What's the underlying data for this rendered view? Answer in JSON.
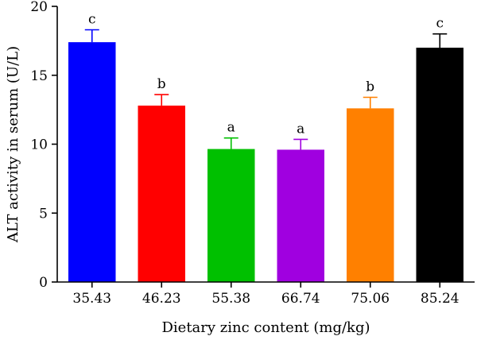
{
  "chart_data": {
    "type": "bar",
    "title": "",
    "xlabel": "Dietary zinc content (mg/kg)",
    "ylabel": "ALT activity in serum (U/L)",
    "ylim": [
      0,
      20
    ],
    "yticks": [
      0,
      5,
      10,
      15,
      20
    ],
    "grid": false,
    "categories": [
      "35.43",
      "46.23",
      "55.38",
      "66.74",
      "75.06",
      "85.24"
    ],
    "values": [
      17.4,
      12.8,
      9.65,
      9.6,
      12.6,
      17.0
    ],
    "errors": [
      0.9,
      0.8,
      0.8,
      0.75,
      0.8,
      1.0
    ],
    "labels": [
      "c",
      "b",
      "a",
      "a",
      "b",
      "c"
    ],
    "colors": [
      "#0000ff",
      "#ff0000",
      "#00c000",
      "#a000e0",
      "#ff8000",
      "#000000"
    ]
  }
}
